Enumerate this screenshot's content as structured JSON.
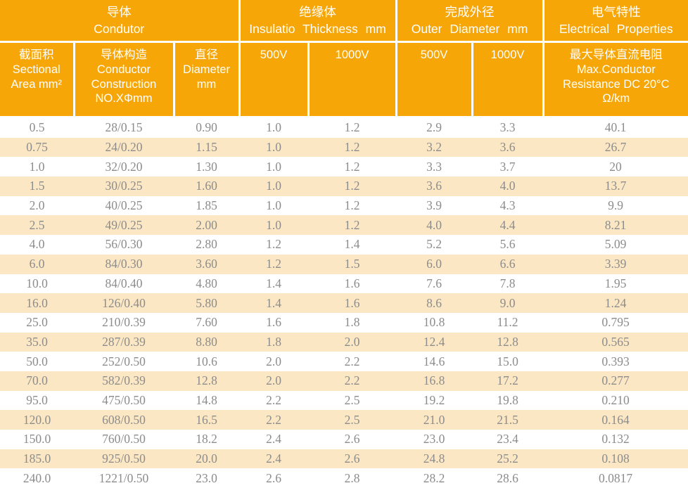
{
  "colors": {
    "header_bg": "#F7A608",
    "header_text": "#FFFFFF",
    "row_alt_bg": "#FBE7C4",
    "row_bg": "#FFFFFF",
    "body_text": "#8C8C8C",
    "grid_line": "#FFFFFF"
  },
  "chart_data": {
    "type": "table",
    "title": "",
    "groups": [
      {
        "label": "导体\nCondutor",
        "colspan": "3"
      },
      {
        "label": "绝缘体\nInsulatio Thickness mm",
        "colspan": "2"
      },
      {
        "label": "完成外径\nOuter Diameter mm",
        "colspan": "2"
      },
      {
        "label": "电气特性\nElectrical Properties",
        "colspan": "1"
      }
    ],
    "columns": [
      "截面积\nSectional\nArea mm²",
      "导体构造\nConductor\nConstruction\nNO.XΦmm",
      "直径\nDiameter\nmm",
      "500V",
      "1000V",
      "500V",
      "1000V",
      "最大导体直流电阻\nMax.Conductor\nResistance DC 20°C\nΩ/km"
    ],
    "rows": [
      [
        "0.5",
        "28/0.15",
        "0.90",
        "1.0",
        "1.2",
        "2.9",
        "3.3",
        "40.1"
      ],
      [
        "0.75",
        "24/0.20",
        "1.15",
        "1.0",
        "1.2",
        "3.2",
        "3.6",
        "26.7"
      ],
      [
        "1.0",
        "32/0.20",
        "1.30",
        "1.0",
        "1.2",
        "3.3",
        "3.7",
        "20"
      ],
      [
        "1.5",
        "30/0.25",
        "1.60",
        "1.0",
        "1.2",
        "3.6",
        "4.0",
        "13.7"
      ],
      [
        "2.0",
        "40/0.25",
        "1.85",
        "1.0",
        "1.2",
        "3.9",
        "4.3",
        "9.9"
      ],
      [
        "2.5",
        "49/0.25",
        "2.00",
        "1.0",
        "1.2",
        "4.0",
        "4.4",
        "8.21"
      ],
      [
        "4.0",
        "56/0.30",
        "2.80",
        "1.2",
        "1.4",
        "5.2",
        "5.6",
        "5.09"
      ],
      [
        "6.0",
        "84/0.30",
        "3.60",
        "1.2",
        "1.5",
        "6.0",
        "6.6",
        "3.39"
      ],
      [
        "10.0",
        "84/0.40",
        "4.80",
        "1.4",
        "1.6",
        "7.6",
        "7.8",
        "1.95"
      ],
      [
        "16.0",
        "126/0.40",
        "5.80",
        "1.4",
        "1.6",
        "8.6",
        "9.0",
        "1.24"
      ],
      [
        "25.0",
        "210/0.39",
        "7.60",
        "1.6",
        "1.8",
        "10.8",
        "11.2",
        "0.795"
      ],
      [
        "35.0",
        "287/0.39",
        "8.80",
        "1.8",
        "2.0",
        "12.4",
        "12.8",
        "0.565"
      ],
      [
        "50.0",
        "252/0.50",
        "10.6",
        "2.0",
        "2.2",
        "14.6",
        "15.0",
        "0.393"
      ],
      [
        "70.0",
        "582/0.39",
        "12.8",
        "2.0",
        "2.2",
        "16.8",
        "17.2",
        "0.277"
      ],
      [
        "95.0",
        "475/0.50",
        "14.8",
        "2.2",
        "2.5",
        "19.2",
        "19.8",
        "0.210"
      ],
      [
        "120.0",
        "608/0.50",
        "16.5",
        "2.2",
        "2.5",
        "21.0",
        "21.5",
        "0.164"
      ],
      [
        "150.0",
        "760/0.50",
        "18.2",
        "2.4",
        "2.6",
        "23.0",
        "23.4",
        "0.132"
      ],
      [
        "185.0",
        "925/0.50",
        "20.0",
        "2.4",
        "2.6",
        "24.8",
        "25.2",
        "0.108"
      ],
      [
        "240.0",
        "1221/0.50",
        "23.0",
        "2.6",
        "2.8",
        "28.2",
        "28.6",
        "0.0817"
      ]
    ]
  }
}
